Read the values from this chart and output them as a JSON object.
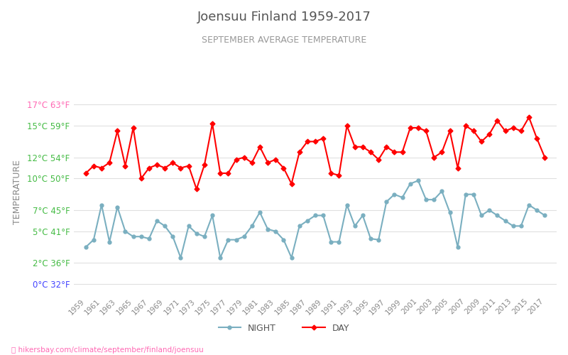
{
  "title": "Joensuu Finland 1959-2017",
  "subtitle": "SEPTEMBER AVERAGE TEMPERATURE",
  "ylabel": "TEMPERATURE",
  "title_color": "#555555",
  "subtitle_color": "#999999",
  "ylabel_color": "#888888",
  "background_color": "#ffffff",
  "grid_color": "#e0e0e0",
  "years": [
    1959,
    1960,
    1961,
    1962,
    1963,
    1964,
    1965,
    1966,
    1967,
    1968,
    1969,
    1970,
    1971,
    1972,
    1973,
    1974,
    1975,
    1976,
    1977,
    1978,
    1979,
    1980,
    1981,
    1982,
    1983,
    1984,
    1985,
    1986,
    1987,
    1988,
    1989,
    1990,
    1991,
    1992,
    1993,
    1994,
    1995,
    1996,
    1997,
    1998,
    1999,
    2000,
    2001,
    2002,
    2003,
    2004,
    2005,
    2006,
    2007,
    2008,
    2009,
    2010,
    2011,
    2012,
    2013,
    2014,
    2015,
    2016,
    2017
  ],
  "day_temps": [
    10.5,
    11.2,
    11.0,
    11.5,
    14.5,
    11.2,
    14.8,
    10.0,
    11.0,
    11.3,
    11.0,
    11.5,
    11.0,
    11.2,
    9.0,
    11.3,
    15.2,
    10.5,
    10.5,
    11.8,
    12.0,
    11.5,
    13.0,
    11.5,
    11.8,
    11.0,
    9.5,
    12.5,
    13.5,
    13.5,
    13.8,
    10.5,
    10.3,
    15.0,
    13.0,
    13.0,
    12.5,
    11.8,
    13.0,
    12.5,
    12.5,
    14.8,
    14.8,
    14.5,
    12.0,
    12.5,
    14.5,
    11.0,
    15.0,
    14.5,
    13.5,
    14.2,
    15.5,
    14.5,
    14.8,
    14.5,
    15.8,
    13.8,
    12.0
  ],
  "night_temps": [
    3.5,
    4.2,
    7.5,
    4.0,
    7.3,
    5.0,
    4.5,
    4.5,
    4.3,
    6.0,
    5.5,
    4.5,
    2.5,
    5.5,
    4.8,
    4.5,
    6.5,
    2.5,
    4.2,
    4.2,
    4.5,
    5.5,
    6.8,
    5.2,
    5.0,
    4.2,
    2.5,
    5.5,
    6.0,
    6.5,
    6.5,
    4.0,
    4.0,
    7.5,
    5.5,
    6.5,
    4.3,
    4.2,
    7.8,
    8.5,
    8.2,
    9.5,
    9.8,
    8.0,
    8.0,
    8.8,
    6.8,
    3.5,
    8.5,
    8.5,
    6.5,
    7.0,
    6.5,
    6.0,
    5.5,
    5.5,
    7.5,
    7.0,
    6.5
  ],
  "day_color": "#ff0000",
  "night_color": "#7aafc0",
  "marker_size": 3.5,
  "line_width": 1.5,
  "yticks_celsius": [
    0,
    2,
    5,
    7,
    10,
    12,
    15,
    17
  ],
  "yticks_fahrenheit": [
    32,
    36,
    41,
    45,
    50,
    54,
    59,
    63
  ],
  "ylim_min": -1.0,
  "ylim_max": 18.5,
  "xlim_min": 1957.5,
  "xlim_max": 2018.5,
  "legend_night": "NIGHT",
  "legend_day": "DAY",
  "watermark": "hikersbay.com/climate/september/finland/joensuu",
  "watermark_color": "#ff69b4",
  "zero_label_color": "#4444ff",
  "top_label_color": "#ff69b4",
  "normal_label_color": "#44bb44"
}
